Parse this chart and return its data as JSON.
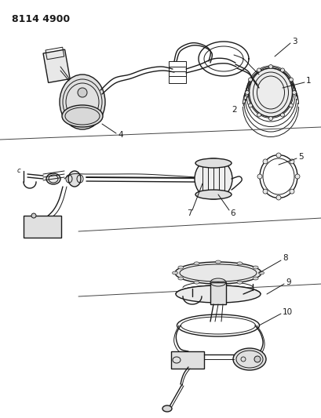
{
  "title": "8114 4900",
  "bg_color": "#ffffff",
  "lc": "#1a1a1a",
  "fig_width": 4.1,
  "fig_height": 5.33,
  "dpi": 100,
  "label_fontsize": 7.5,
  "title_fontsize": 9
}
